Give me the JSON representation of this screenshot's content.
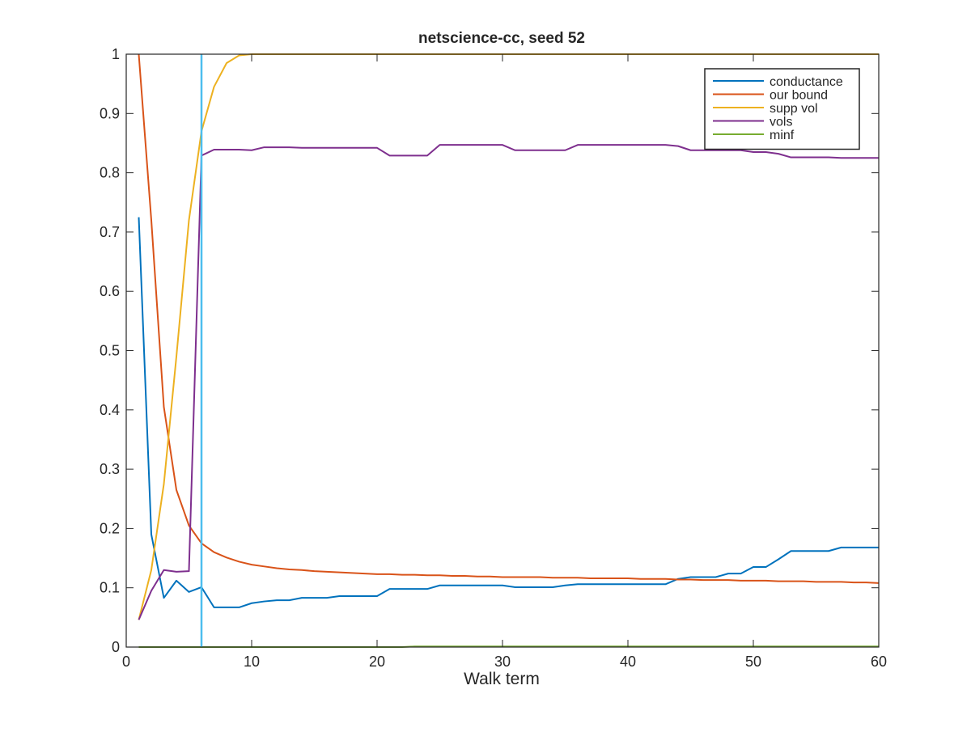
{
  "chart_data": {
    "type": "line",
    "title": "netscience-cc, seed 52",
    "xlabel": "Walk term",
    "ylabel": "",
    "xlim": [
      0,
      60
    ],
    "ylim": [
      0,
      1
    ],
    "xticks": [
      0,
      10,
      20,
      30,
      40,
      50,
      60
    ],
    "yticks": [
      0,
      0.1,
      0.2,
      0.3,
      0.4,
      0.5,
      0.6,
      0.7,
      0.8,
      0.9,
      1
    ],
    "xtick_labels": [
      "0",
      "10",
      "20",
      "30",
      "40",
      "50",
      "60"
    ],
    "ytick_labels": [
      "0",
      "0.1",
      "0.2",
      "0.3",
      "0.4",
      "0.5",
      "0.6",
      "0.7",
      "0.8",
      "0.9",
      "1"
    ],
    "grid": false,
    "legend_position": "top-right",
    "vertical_marker": {
      "x": 6,
      "color": "#4DBEEE"
    },
    "x": [
      1,
      2,
      3,
      4,
      5,
      6,
      7,
      8,
      9,
      10,
      11,
      12,
      13,
      14,
      15,
      16,
      17,
      18,
      19,
      20,
      21,
      22,
      23,
      24,
      25,
      26,
      27,
      28,
      29,
      30,
      31,
      32,
      33,
      34,
      35,
      36,
      37,
      38,
      39,
      40,
      41,
      42,
      43,
      44,
      45,
      46,
      47,
      48,
      49,
      50,
      51,
      52,
      53,
      54,
      55,
      56,
      57,
      58,
      59,
      60
    ],
    "series": [
      {
        "name": "conductance",
        "color": "#0072BD",
        "values": [
          0.725,
          0.19,
          0.083,
          0.112,
          0.093,
          0.101,
          0.067,
          0.067,
          0.067,
          0.074,
          0.077,
          0.079,
          0.079,
          0.083,
          0.083,
          0.083,
          0.086,
          0.086,
          0.086,
          0.086,
          0.098,
          0.098,
          0.098,
          0.098,
          0.104,
          0.104,
          0.104,
          0.104,
          0.104,
          0.104,
          0.101,
          0.101,
          0.101,
          0.101,
          0.104,
          0.106,
          0.106,
          0.106,
          0.106,
          0.106,
          0.106,
          0.106,
          0.106,
          0.115,
          0.118,
          0.118,
          0.118,
          0.124,
          0.124,
          0.135,
          0.135,
          0.148,
          0.162,
          0.162,
          0.162,
          0.162,
          0.168,
          0.168,
          0.168,
          0.168
        ]
      },
      {
        "name": "our bound",
        "color": "#D95319",
        "values": [
          1.0,
          0.72,
          0.405,
          0.265,
          0.205,
          0.175,
          0.16,
          0.151,
          0.144,
          0.139,
          0.136,
          0.133,
          0.131,
          0.13,
          0.128,
          0.127,
          0.126,
          0.125,
          0.124,
          0.123,
          0.123,
          0.122,
          0.122,
          0.121,
          0.121,
          0.12,
          0.12,
          0.119,
          0.119,
          0.118,
          0.118,
          0.118,
          0.118,
          0.117,
          0.117,
          0.117,
          0.116,
          0.116,
          0.116,
          0.116,
          0.115,
          0.115,
          0.115,
          0.114,
          0.114,
          0.113,
          0.113,
          0.113,
          0.112,
          0.112,
          0.112,
          0.111,
          0.111,
          0.111,
          0.11,
          0.11,
          0.11,
          0.109,
          0.109,
          0.108
        ]
      },
      {
        "name": "supp vol",
        "color": "#EDB120",
        "values": [
          0.046,
          0.13,
          0.275,
          0.49,
          0.72,
          0.87,
          0.945,
          0.985,
          0.998,
          1.0,
          1.0,
          1.0,
          1.0,
          1.0,
          1.0,
          1.0,
          1.0,
          1.0,
          1.0,
          1.0,
          1.0,
          1.0,
          1.0,
          1.0,
          1.0,
          1.0,
          1.0,
          1.0,
          1.0,
          1.0,
          1.0,
          1.0,
          1.0,
          1.0,
          1.0,
          1.0,
          1.0,
          1.0,
          1.0,
          1.0,
          1.0,
          1.0,
          1.0,
          1.0,
          1.0,
          1.0,
          1.0,
          1.0,
          1.0,
          1.0,
          1.0,
          1.0,
          1.0,
          1.0,
          1.0,
          1.0,
          1.0,
          1.0,
          1.0,
          1.0
        ]
      },
      {
        "name": "vols",
        "color": "#7E2F8E",
        "values": [
          0.046,
          0.095,
          0.13,
          0.127,
          0.128,
          0.829,
          0.839,
          0.839,
          0.839,
          0.838,
          0.843,
          0.843,
          0.843,
          0.842,
          0.842,
          0.842,
          0.842,
          0.842,
          0.842,
          0.842,
          0.829,
          0.829,
          0.829,
          0.829,
          0.847,
          0.847,
          0.847,
          0.847,
          0.847,
          0.847,
          0.838,
          0.838,
          0.838,
          0.838,
          0.838,
          0.847,
          0.847,
          0.847,
          0.847,
          0.847,
          0.847,
          0.847,
          0.847,
          0.845,
          0.838,
          0.838,
          0.838,
          0.838,
          0.838,
          0.835,
          0.835,
          0.832,
          0.826,
          0.826,
          0.826,
          0.826,
          0.825,
          0.825,
          0.825,
          0.825
        ]
      },
      {
        "name": "minf",
        "color": "#77AC30",
        "values": [
          0,
          0,
          0,
          0,
          0,
          0,
          0,
          0,
          0,
          0,
          0,
          0,
          0,
          0,
          0,
          0,
          0,
          0,
          0,
          0,
          0,
          0,
          0.001,
          0.001,
          0.001,
          0.001,
          0.001,
          0.001,
          0.001,
          0.001,
          0.001,
          0.001,
          0.001,
          0.001,
          0.001,
          0.001,
          0.001,
          0.001,
          0.001,
          0.001,
          0.001,
          0.001,
          0.001,
          0.001,
          0.001,
          0.001,
          0.001,
          0.001,
          0.001,
          0.001,
          0.001,
          0.001,
          0.001,
          0.001,
          0.001,
          0.001,
          0.001,
          0.001,
          0.001,
          0.001
        ]
      }
    ]
  }
}
